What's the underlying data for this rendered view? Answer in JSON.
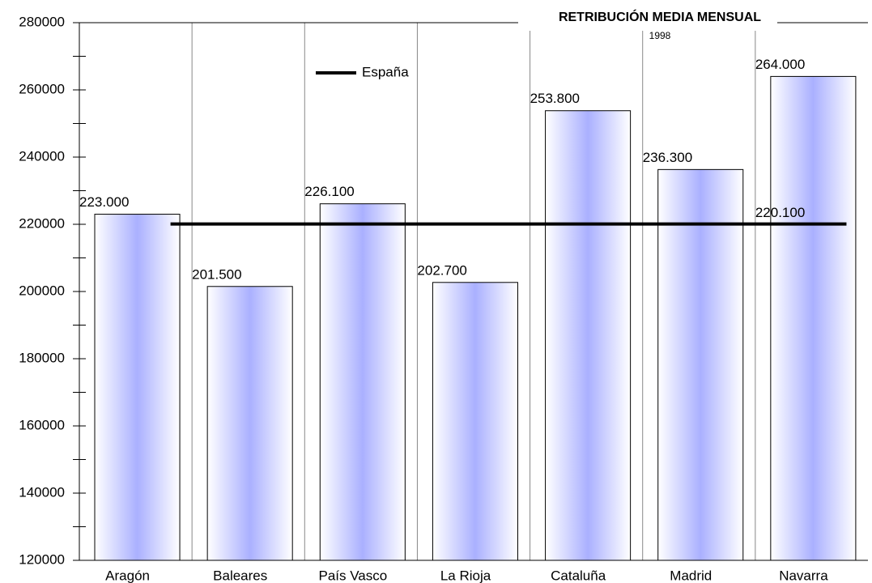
{
  "chart_data": {
    "type": "bar",
    "title": "RETRIBUCIÓN MEDIA MENSUAL",
    "subtitle": "1998",
    "categories": [
      "Aragón",
      "Baleares",
      "País Vasco",
      "La Rioja",
      "Cataluña",
      "Madrid",
      "Navarra"
    ],
    "values": [
      223000,
      201500,
      226100,
      202700,
      253800,
      236300,
      264000
    ],
    "value_labels": [
      "223.000",
      "201.500",
      "226.100",
      "202.700",
      "253.800",
      "236.300",
      "264.000"
    ],
    "color": "#aab0ff",
    "reference_line": {
      "name": "España",
      "color": "#000000",
      "value": 220100,
      "value_label": "220.100"
    },
    "ylim": [
      120000,
      280000
    ],
    "yticks": [
      120000,
      140000,
      160000,
      180000,
      200000,
      220000,
      240000,
      260000,
      280000
    ],
    "grid": true
  }
}
